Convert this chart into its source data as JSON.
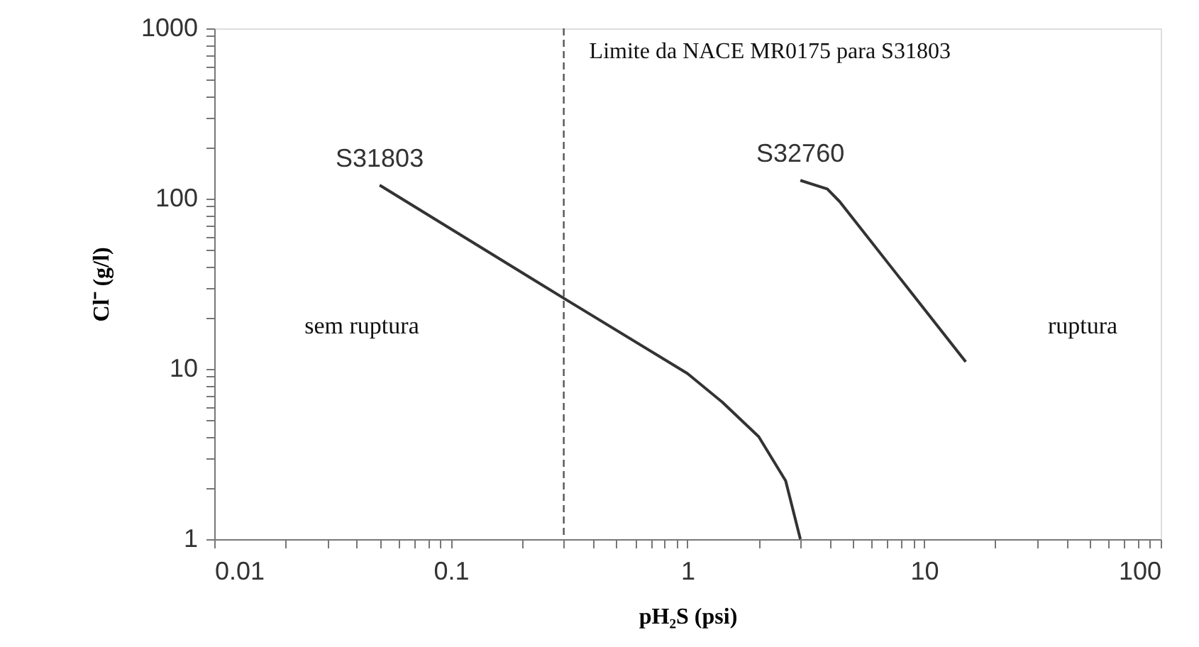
{
  "chart_data": {
    "type": "line",
    "xlabel": "pH₂S (psi)",
    "ylabel": "Cl⁻ (g/l)",
    "log": "xy",
    "grid": false,
    "marker": "none",
    "line_style": "solid",
    "xlim": [
      0.01,
      100
    ],
    "ylim": [
      1,
      1000
    ],
    "xticks": [
      0.01,
      {
        "value": 0.02,
        "label": null
      },
      {
        "value": 0.03,
        "label": null
      },
      {
        "value": 0.04,
        "label": null
      },
      {
        "value": 0.05,
        "label": null
      },
      {
        "value": 0.06,
        "label": null
      },
      {
        "value": 0.07,
        "label": null
      },
      {
        "value": 0.08,
        "label": null
      },
      {
        "value": 0.09,
        "label": null
      },
      0.1,
      {
        "value": 0.2,
        "label": null
      },
      {
        "value": 0.3,
        "label": null
      },
      {
        "value": 0.4,
        "label": null
      },
      {
        "value": 0.5,
        "label": null
      },
      {
        "value": 0.6,
        "label": null
      },
      {
        "value": 0.7,
        "label": null
      },
      {
        "value": 0.8,
        "label": null
      },
      {
        "value": 0.9,
        "label": null
      },
      1,
      {
        "value": 2,
        "label": null
      },
      {
        "value": 3,
        "label": null
      },
      {
        "value": 4,
        "label": null
      },
      {
        "value": 5,
        "label": null
      },
      {
        "value": 6,
        "label": null
      },
      {
        "value": 7,
        "label": null
      },
      {
        "value": 8,
        "label": null
      },
      {
        "value": 9,
        "label": null
      },
      10,
      {
        "value": 20,
        "label": null
      },
      {
        "value": 30,
        "label": null
      },
      {
        "value": 40,
        "label": null
      },
      {
        "value": 50,
        "label": null
      },
      {
        "value": 60,
        "label": null
      },
      {
        "value": 70,
        "label": null
      },
      {
        "value": 80,
        "label": null
      },
      {
        "value": 90,
        "label": null
      },
      100
    ],
    "yticks": [
      1,
      {
        "value": 2,
        "label": null
      },
      {
        "value": 3,
        "label": null
      },
      {
        "value": 4,
        "label": null
      },
      {
        "value": 5,
        "label": null
      },
      {
        "value": 6,
        "label": null
      },
      {
        "value": 7,
        "label": null
      },
      {
        "value": 8,
        "label": null
      },
      {
        "value": 9,
        "label": null
      },
      10,
      {
        "value": 20,
        "label": null
      },
      {
        "value": 30,
        "label": null
      },
      {
        "value": 40,
        "label": null
      },
      {
        "value": 50,
        "label": null
      },
      {
        "value": 60,
        "label": null
      },
      {
        "value": 70,
        "label": null
      },
      {
        "value": 80,
        "label": null
      },
      {
        "value": 90,
        "label": null
      },
      100,
      {
        "value": 200,
        "label": null
      },
      {
        "value": 300,
        "label": null
      },
      {
        "value": 400,
        "label": null
      },
      {
        "value": 500,
        "label": null
      },
      {
        "value": 600,
        "label": null
      },
      {
        "value": 700,
        "label": null
      },
      {
        "value": 800,
        "label": null
      },
      {
        "value": 900,
        "label": null
      },
      1000
    ],
    "series": [
      {
        "name": "S31803",
        "color": "#333333",
        "x": [
          0.05,
          0.3,
          1,
          1.4,
          2,
          2.6,
          3
        ],
        "values": [
          120,
          26,
          9.4,
          6.4,
          4,
          2.2,
          1
        ]
      },
      {
        "name": "S32760",
        "color": "#333333",
        "x": [
          3,
          3.9,
          4.4,
          15
        ],
        "values": [
          128,
          114,
          96,
          11
        ]
      }
    ],
    "ref_lines": [
      {
        "axis": "x",
        "value": 0.3,
        "label": "Limite da NACE MR0175 para S31803",
        "color": "#555555",
        "line_style": "dashed"
      }
    ],
    "annotations": [
      "sem ruptura",
      "ruptura"
    ]
  }
}
